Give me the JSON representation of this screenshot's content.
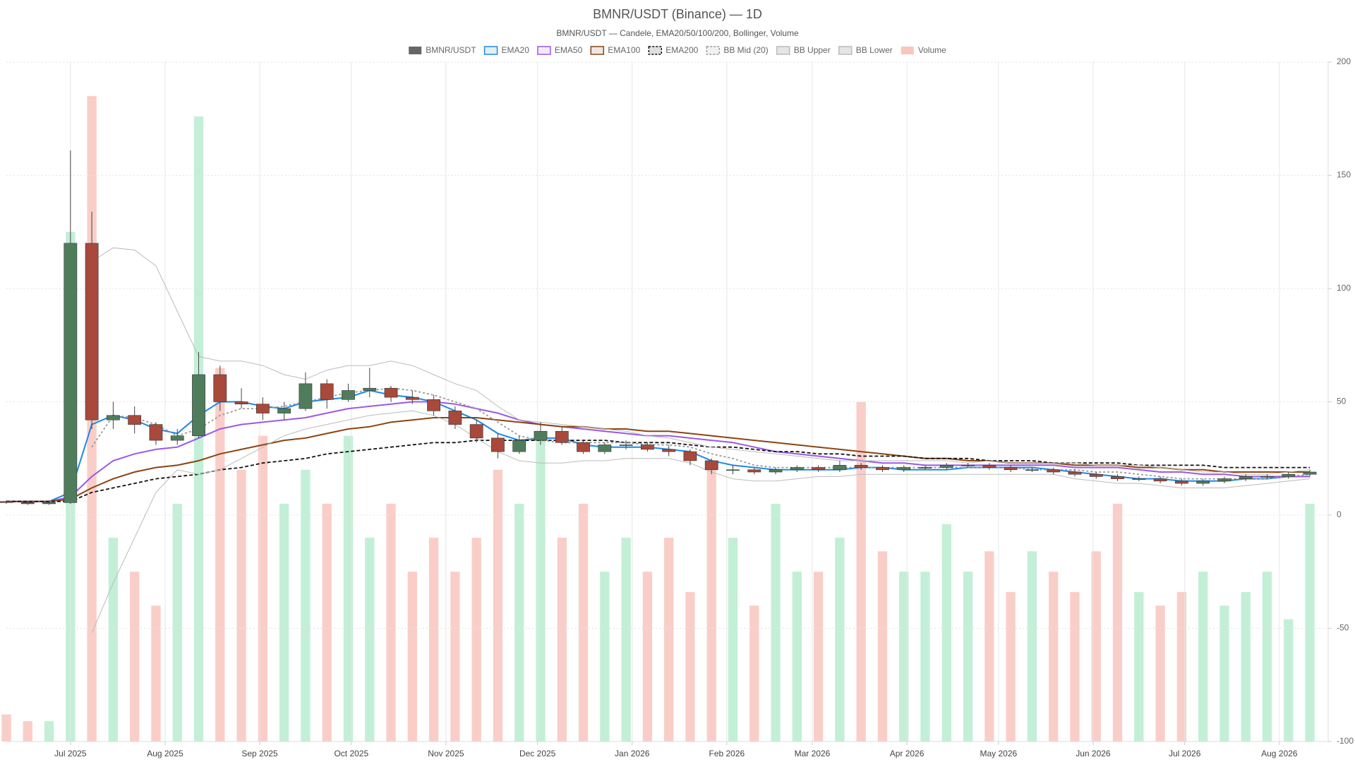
{
  "chart_data": {
    "type": "candlestick",
    "title": "BMNR/USDT (Binance) — 1D",
    "subtitle": "BMNR/USDT — Candele, EMA20/50/100/200, Bollinger, Volume",
    "x": [
      0,
      7,
      14,
      21,
      28,
      35,
      42,
      49,
      56,
      63,
      70,
      77,
      84,
      91,
      98,
      105,
      112,
      119,
      126,
      133,
      140,
      147,
      154,
      161,
      168,
      175,
      182,
      189,
      196,
      203,
      210,
      217,
      224,
      231,
      238,
      245,
      252,
      259,
      266,
      273,
      280,
      287,
      294,
      301,
      308,
      315,
      322,
      329,
      336,
      343,
      350,
      357,
      364,
      371,
      378,
      385,
      392,
      399,
      406,
      413,
      420,
      427
    ],
    "xlim": [
      0,
      433
    ],
    "xticks": [
      {
        "value": 21,
        "label": "Jul 2025"
      },
      {
        "value": 52,
        "label": "Aug 2025"
      },
      {
        "value": 83,
        "label": "Sep 2025"
      },
      {
        "value": 113,
        "label": "Oct 2025"
      },
      {
        "value": 144,
        "label": "Nov 2025"
      },
      {
        "value": 174,
        "label": "Dec 2025"
      },
      {
        "value": 205,
        "label": "Jan 2026"
      },
      {
        "value": 236,
        "label": "Feb 2026"
      },
      {
        "value": 264,
        "label": "Mar 2026"
      },
      {
        "value": 295,
        "label": "Apr 2026"
      },
      {
        "value": 325,
        "label": "May 2026"
      },
      {
        "value": 356,
        "label": "Jun 2026"
      },
      {
        "value": 386,
        "label": "Jul 2026"
      },
      {
        "value": 417,
        "label": "Aug 2026"
      }
    ],
    "ylim": [
      -100,
      200
    ],
    "yticks": [
      -100,
      -50,
      0,
      50,
      100,
      150,
      200
    ],
    "y2lim": [
      0,
      100
    ],
    "grid": true,
    "legend_position": "top",
    "series": [
      {
        "name": "BMNR/USDT",
        "color": "#666666",
        "up_color": "#4f7d5c",
        "down_color": "#a8493b",
        "open": [
          6,
          5.5,
          5,
          5.5,
          120,
          42,
          44,
          40,
          33,
          35,
          62,
          50,
          49,
          45,
          47,
          58,
          51,
          55,
          56,
          52,
          51,
          46,
          40,
          34,
          28,
          33,
          37,
          32,
          28,
          31,
          31,
          29,
          28,
          24,
          20,
          20,
          19,
          20,
          21,
          20,
          22,
          21,
          20,
          21,
          21,
          22,
          22,
          21,
          20,
          20,
          19,
          18,
          17,
          16,
          16,
          15,
          14,
          15,
          16,
          17,
          17,
          18
        ],
        "high": [
          6.5,
          6,
          6,
          161,
          134,
          50,
          48,
          41,
          38,
          72,
          66,
          56,
          52,
          50,
          63,
          60,
          58,
          65,
          57,
          55,
          53,
          48,
          42,
          36,
          35,
          41,
          39,
          33,
          32,
          33,
          32,
          31,
          29,
          25,
          22,
          21,
          21,
          22,
          22,
          24,
          23,
          22,
          22,
          22,
          23,
          23,
          23,
          22,
          21,
          21,
          20,
          19,
          18,
          17,
          17,
          16,
          16,
          17,
          18,
          18,
          19,
          20
        ],
        "low": [
          5,
          4.5,
          4.5,
          5,
          38,
          38,
          36,
          31,
          31,
          34,
          46,
          47,
          42,
          42,
          46,
          47,
          50,
          52,
          50,
          49,
          44,
          38,
          32,
          25,
          27,
          31,
          31,
          27,
          27,
          29,
          28,
          26,
          22,
          18,
          18,
          18,
          18,
          19,
          19,
          19,
          20,
          19,
          19,
          20,
          20,
          21,
          20,
          19,
          19,
          18,
          17,
          16,
          15,
          15,
          14,
          13,
          13,
          14,
          15,
          16,
          16,
          17
        ],
        "close": [
          5.5,
          5,
          5.5,
          120,
          42,
          44,
          40,
          33,
          35,
          62,
          50,
          49,
          45,
          47,
          58,
          51,
          55,
          56,
          52,
          51,
          46,
          40,
          34,
          28,
          33,
          37,
          32,
          28,
          31,
          31,
          29,
          28,
          24,
          20,
          20,
          19,
          20,
          21,
          20,
          22,
          21,
          20,
          21,
          21,
          22,
          22,
          21,
          20,
          20,
          19,
          18,
          17,
          16,
          16,
          15,
          14,
          15,
          16,
          17,
          17,
          18,
          19
        ]
      },
      {
        "name": "EMA20",
        "color": "#1e88e5",
        "values": [
          6,
          6,
          6,
          10,
          40,
          44,
          42,
          38,
          36,
          44,
          50,
          50,
          48,
          47,
          50,
          51,
          52,
          55,
          53,
          52,
          50,
          46,
          42,
          36,
          33,
          34,
          34,
          31,
          30,
          30,
          30,
          29,
          28,
          24,
          22,
          21,
          20,
          20,
          20,
          20,
          21,
          21,
          20,
          20,
          20,
          21,
          21,
          21,
          21,
          20,
          19,
          18,
          17,
          16,
          16,
          15,
          15,
          15,
          16,
          16,
          17,
          17
        ]
      },
      {
        "name": "EMA50",
        "color": "#9b59e6",
        "values": [
          6,
          6,
          6,
          8,
          17,
          24,
          27,
          29,
          30,
          34,
          38,
          40,
          41,
          42,
          43,
          45,
          47,
          48,
          49,
          50,
          50,
          49,
          47,
          45,
          42,
          40,
          39,
          38,
          37,
          36,
          35,
          35,
          34,
          33,
          32,
          30,
          28,
          27,
          26,
          25,
          24,
          23,
          23,
          22,
          22,
          22,
          22,
          22,
          22,
          22,
          21,
          21,
          21,
          20,
          19,
          19,
          18,
          18,
          17,
          17,
          17,
          17
        ]
      },
      {
        "name": "EMA100",
        "color": "#8b4513",
        "values": [
          6,
          6,
          6,
          7,
          12,
          16,
          19,
          21,
          22,
          24,
          27,
          29,
          31,
          33,
          34,
          36,
          38,
          39,
          41,
          42,
          43,
          43,
          43,
          42,
          41,
          40,
          39,
          39,
          38,
          38,
          37,
          37,
          36,
          35,
          34,
          33,
          32,
          31,
          30,
          29,
          28,
          27,
          26,
          25,
          25,
          24,
          24,
          23,
          23,
          23,
          22,
          22,
          22,
          21,
          21,
          20,
          20,
          19,
          19,
          19,
          19,
          19
        ]
      },
      {
        "name": "EMA200",
        "color": "#111111",
        "dashed": true,
        "values": [
          6,
          6,
          6,
          6,
          10,
          12,
          14,
          16,
          17,
          18,
          20,
          21,
          23,
          24,
          25,
          27,
          28,
          29,
          30,
          31,
          32,
          32,
          33,
          33,
          33,
          33,
          33,
          33,
          33,
          32,
          32,
          32,
          31,
          30,
          30,
          29,
          28,
          28,
          27,
          27,
          26,
          26,
          26,
          25,
          25,
          25,
          24,
          24,
          24,
          23,
          23,
          23,
          23,
          22,
          22,
          22,
          22,
          21,
          21,
          21,
          21,
          21
        ]
      },
      {
        "name": "BB Mid (20)",
        "color": "#999999",
        "dashed": true,
        "values": [
          null,
          null,
          null,
          null,
          30,
          44,
          43,
          40,
          35,
          38,
          44,
          47,
          47,
          48,
          50,
          52,
          54,
          55,
          56,
          55,
          53,
          50,
          47,
          41,
          35,
          33,
          32,
          32,
          32,
          32,
          31,
          31,
          30,
          27,
          25,
          22,
          21,
          21,
          21,
          21,
          21,
          21,
          21,
          21,
          21,
          21,
          21,
          21,
          20,
          20,
          20,
          19,
          19,
          18,
          17,
          16,
          16,
          16,
          16,
          16,
          17,
          18
        ]
      },
      {
        "name": "BB Upper",
        "color": "#bbbbbb",
        "values": [
          null,
          null,
          null,
          null,
          112,
          118,
          117,
          110,
          90,
          70,
          68,
          68,
          66,
          62,
          60,
          64,
          66,
          66,
          68,
          66,
          62,
          58,
          55,
          48,
          42,
          41,
          40,
          39,
          38,
          37,
          35,
          34,
          32,
          30,
          29,
          28,
          27,
          26,
          25,
          24,
          24,
          24,
          24,
          24,
          24,
          23,
          24,
          23,
          23,
          23,
          23,
          22,
          22,
          22,
          21,
          20,
          19,
          19,
          18,
          18,
          19,
          20
        ]
      },
      {
        "name": "BB Lower",
        "color": "#bbbbbb",
        "values": [
          null,
          null,
          null,
          null,
          -52,
          -30,
          -10,
          10,
          20,
          18,
          20,
          25,
          30,
          35,
          38,
          40,
          42,
          44,
          45,
          46,
          44,
          40,
          34,
          28,
          24,
          23,
          23,
          24,
          24,
          25,
          25,
          25,
          23,
          19,
          16,
          15,
          15,
          16,
          17,
          17,
          18,
          18,
          18,
          18,
          18,
          18,
          18,
          18,
          18,
          18,
          16,
          15,
          14,
          14,
          13,
          12,
          12,
          12,
          13,
          14,
          15,
          16
        ]
      },
      {
        "name": "Volume",
        "color": "#f9c6be",
        "up_color": "#b8ecd0",
        "down_color": "#f9c6be",
        "axis": "y2",
        "values": [
          4,
          3,
          3,
          75,
          95,
          30,
          25,
          20,
          35,
          92,
          55,
          40,
          45,
          35,
          40,
          35,
          45,
          30,
          35,
          25,
          30,
          25,
          30,
          40,
          35,
          45,
          30,
          35,
          25,
          30,
          25,
          30,
          22,
          40,
          30,
          20,
          35,
          25,
          25,
          30,
          50,
          28,
          25,
          25,
          32,
          25,
          28,
          22,
          28,
          25,
          22,
          28,
          35,
          22,
          20,
          22,
          25,
          20,
          22,
          25,
          18,
          35
        ]
      }
    ]
  }
}
